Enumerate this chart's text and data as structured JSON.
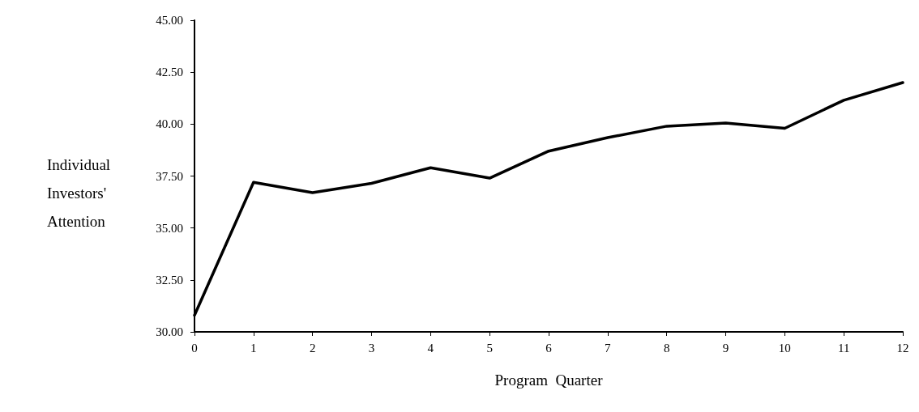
{
  "chart_data": {
    "type": "line",
    "xlabel": "Program  Quarter",
    "ylabel": "Individual Investors' Attention",
    "x": [
      0,
      1,
      2,
      3,
      4,
      5,
      6,
      7,
      8,
      9,
      10,
      11,
      12
    ],
    "series": [
      {
        "color": "#000000",
        "values": [
          30.8,
          37.2,
          36.7,
          37.15,
          37.9,
          37.4,
          38.7,
          39.35,
          39.9,
          40.05,
          39.8,
          41.15,
          42.0
        ]
      }
    ],
    "xlim": [
      0,
      12
    ],
    "xticks": [
      0,
      1,
      2,
      3,
      4,
      5,
      6,
      7,
      8,
      9,
      10,
      11,
      12
    ],
    "ylim": [
      30,
      45
    ],
    "yticks": [
      {
        "value": 30,
        "label": "30.00"
      },
      {
        "value": 32.5,
        "label": "32.50"
      },
      {
        "value": 35,
        "label": "35.00"
      },
      {
        "value": 37.5,
        "label": "37.50"
      },
      {
        "value": 40,
        "label": "40.00"
      },
      {
        "value": 42.5,
        "label": "42.50"
      },
      {
        "value": 45,
        "label": "45.00"
      }
    ],
    "grid": false,
    "marker": "none",
    "line_style": "solid"
  }
}
